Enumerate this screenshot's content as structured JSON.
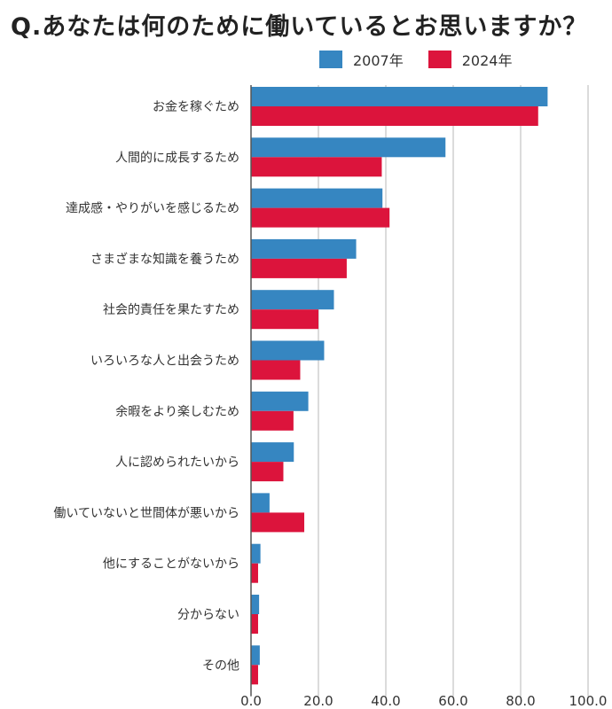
{
  "chart_data": {
    "type": "bar",
    "orientation": "horizontal",
    "title": "Q.あなたは何のために働いているとお思いますか？",
    "categories": [
      "お金を稼ぐため",
      "人間的に成長するため",
      "達成感・やりがいを感じるため",
      "さまざまな知識を養うため",
      "社会的責任を果たすため",
      "いろいろな人と出会うため",
      "余暇をより楽しむため",
      "人に認められたいから",
      "働いていないと世間体が悪いから",
      "他にすることがないから",
      "分からない",
      "その他"
    ],
    "series": [
      {
        "name": "2007年",
        "color": "#3686c1",
        "values": [
          88.0,
          57.7,
          39.0,
          31.2,
          24.6,
          21.7,
          17.0,
          12.7,
          5.5,
          2.8,
          2.4,
          2.6
        ]
      },
      {
        "name": "2024年",
        "color": "#dc143c",
        "values": [
          85.2,
          38.8,
          41.1,
          28.4,
          20.0,
          14.6,
          12.6,
          9.6,
          15.8,
          2.1,
          2.1,
          2.1
        ]
      }
    ],
    "xlim": [
      0,
      100
    ],
    "xticks": [
      "0.0",
      "20.0",
      "40.0",
      "60.0",
      "80.0",
      "100.0"
    ],
    "xtick_values": [
      0,
      20,
      40,
      60,
      80,
      100
    ],
    "grid": true,
    "legend_position": "top-right"
  }
}
